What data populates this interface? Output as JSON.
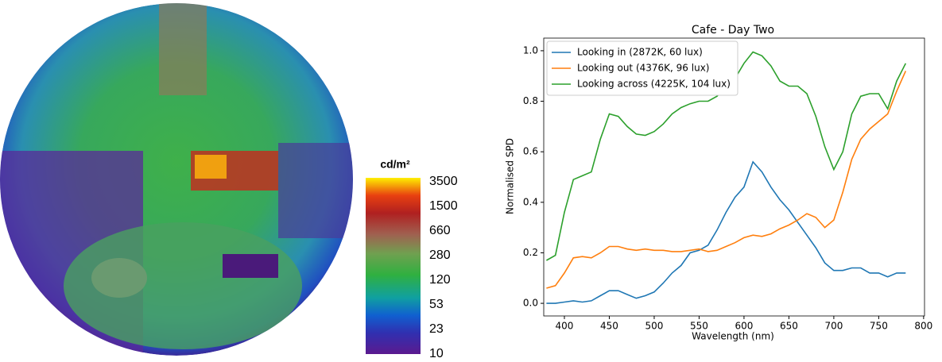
{
  "luminance_map": {
    "colorbar_label": "cd/m²",
    "colorbar_ticks": [
      3500,
      1500,
      660,
      280,
      120,
      53,
      23,
      10
    ]
  },
  "chart_data": {
    "type": "line",
    "title": "Cafe - Day Two",
    "x_label": "Wavelength (nm)",
    "y_label": "Normalised SPD",
    "x": [
      380,
      390,
      400,
      410,
      420,
      430,
      440,
      450,
      460,
      470,
      480,
      490,
      500,
      510,
      520,
      530,
      540,
      550,
      560,
      570,
      580,
      590,
      600,
      610,
      620,
      630,
      640,
      650,
      660,
      670,
      680,
      690,
      700,
      710,
      720,
      730,
      740,
      750,
      760,
      770,
      780
    ],
    "series": [
      {
        "name": "Looking in (2872K, 60 lux)",
        "color": "#1f77b4",
        "values": [
          0,
          0,
          0.005,
          0.01,
          0.005,
          0.01,
          0.03,
          0.05,
          0.05,
          0.035,
          0.02,
          0.03,
          0.045,
          0.08,
          0.12,
          0.15,
          0.2,
          0.21,
          0.23,
          0.29,
          0.36,
          0.42,
          0.46,
          0.56,
          0.52,
          0.46,
          0.41,
          0.37,
          0.32,
          0.27,
          0.22,
          0.16,
          0.13,
          0.13,
          0.14,
          0.14,
          0.12,
          0.12,
          0.105,
          0.12,
          0.12
        ]
      },
      {
        "name": "Looking out (4376K, 96 lux)",
        "color": "#ff7f0e",
        "values": [
          0.06,
          0.07,
          0.12,
          0.18,
          0.185,
          0.18,
          0.2,
          0.225,
          0.225,
          0.215,
          0.21,
          0.215,
          0.21,
          0.21,
          0.205,
          0.205,
          0.21,
          0.215,
          0.205,
          0.21,
          0.225,
          0.24,
          0.26,
          0.27,
          0.265,
          0.275,
          0.295,
          0.31,
          0.33,
          0.355,
          0.34,
          0.3,
          0.33,
          0.44,
          0.57,
          0.65,
          0.69,
          0.72,
          0.75,
          0.84,
          0.92
        ]
      },
      {
        "name": "Looking across (4225K, 104 lux)",
        "color": "#2ca02c",
        "values": [
          0.17,
          0.19,
          0.36,
          0.49,
          0.505,
          0.52,
          0.65,
          0.75,
          0.74,
          0.7,
          0.67,
          0.665,
          0.68,
          0.71,
          0.75,
          0.775,
          0.79,
          0.8,
          0.8,
          0.82,
          0.86,
          0.89,
          0.95,
          0.995,
          0.98,
          0.94,
          0.88,
          0.86,
          0.86,
          0.83,
          0.74,
          0.62,
          0.53,
          0.6,
          0.75,
          0.82,
          0.83,
          0.83,
          0.77,
          0.88,
          0.95
        ]
      }
    ],
    "xlim": [
      377,
      801
    ],
    "ylim": [
      -0.05,
      1.05
    ],
    "xticks": [
      400,
      450,
      500,
      550,
      600,
      650,
      700,
      750,
      800
    ],
    "yticks": [
      {
        "value": 0,
        "label": "0.0"
      },
      0.2,
      0.4,
      0.6,
      0.8,
      {
        "value": 1,
        "label": "1.0"
      }
    ],
    "legend": "upper left"
  }
}
